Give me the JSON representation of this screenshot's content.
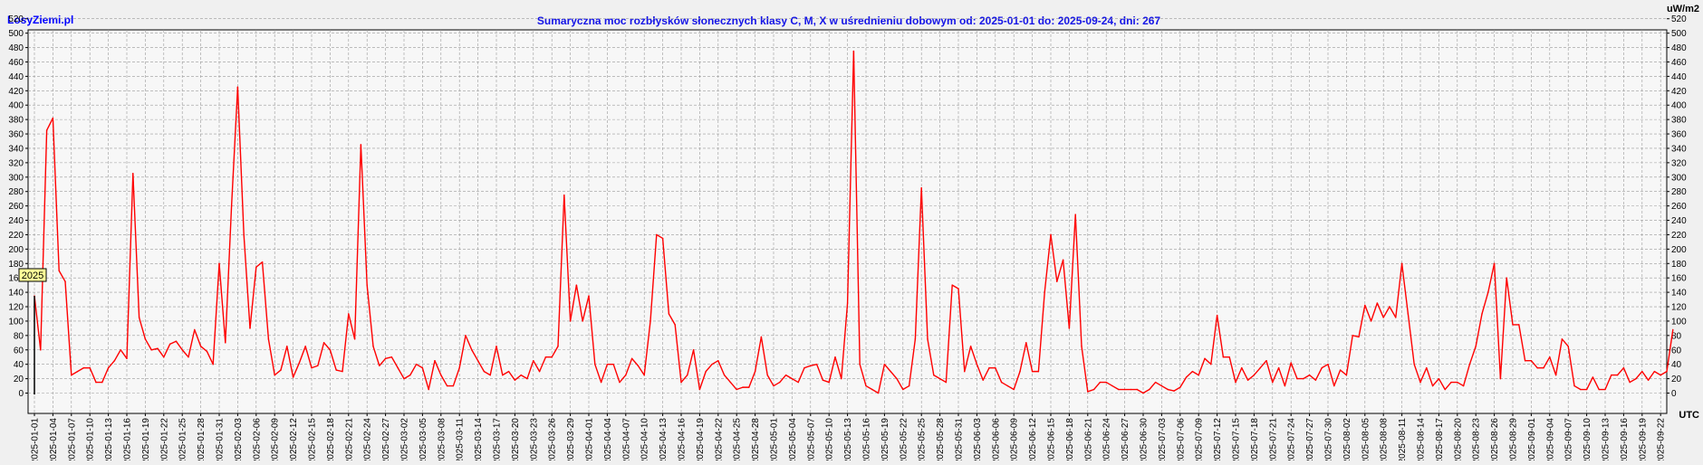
{
  "site_logo": "LosyZiemi.pl",
  "chart_data": {
    "type": "line",
    "title": "Sumaryczna moc rozbłysków słonecznych klasy C, M, X w uśrednieniu dobowym od: 2025-01-01 do: 2025-09-24, dni: 267",
    "y_unit_label": "uW/m2",
    "x_unit_label": "UTC",
    "year_badge": "2025",
    "ylim": [
      -10,
      520
    ],
    "y_tick_step": 20,
    "grid": true,
    "line_color": "#ff0000",
    "x_tick_labels": [
      "2025-01-01",
      "2025-01-04",
      "2025-01-07",
      "2025-01-10",
      "2025-01-13",
      "2025-01-16",
      "2025-01-19",
      "2025-01-22",
      "2025-01-25",
      "2025-01-28",
      "2025-01-31",
      "2025-02-03",
      "2025-02-06",
      "2025-02-09",
      "2025-02-12",
      "2025-02-15",
      "2025-02-18",
      "2025-02-21",
      "2025-02-24",
      "2025-02-27",
      "2025-03-02",
      "2025-03-05",
      "2025-03-08",
      "2025-03-11",
      "2025-03-14",
      "2025-03-17",
      "2025-03-20",
      "2025-03-23",
      "2025-03-26",
      "2025-03-29",
      "2025-04-01",
      "2025-04-04",
      "2025-04-07",
      "2025-04-10",
      "2025-04-13",
      "2025-04-16",
      "2025-04-19",
      "2025-04-22",
      "2025-04-25",
      "2025-04-28",
      "2025-05-01",
      "2025-05-04",
      "2025-05-07",
      "2025-05-10",
      "2025-05-13",
      "2025-05-16",
      "2025-05-19",
      "2025-05-22",
      "2025-05-25",
      "2025-05-28",
      "2025-05-31",
      "2025-06-03",
      "2025-06-06",
      "2025-06-09",
      "2025-06-12",
      "2025-06-15",
      "2025-06-18",
      "2025-06-21",
      "2025-06-24",
      "2025-06-27",
      "2025-06-30",
      "2025-07-03",
      "2025-07-06",
      "2025-07-09",
      "2025-07-12",
      "2025-07-15",
      "2025-07-18",
      "2025-07-21",
      "2025-07-24",
      "2025-07-27",
      "2025-07-30",
      "2025-08-02",
      "2025-08-05",
      "2025-08-08",
      "2025-08-11",
      "2025-08-14",
      "2025-08-17",
      "2025-08-20",
      "2025-08-23",
      "2025-08-26",
      "2025-08-29",
      "2025-09-01",
      "2025-09-04",
      "2025-09-07",
      "2025-09-10",
      "2025-09-13",
      "2025-09-16",
      "2025-09-19",
      "2025-09-22"
    ],
    "series": [
      {
        "values": [
          135,
          60,
          365,
          382,
          170,
          155,
          25,
          30,
          35,
          35,
          15,
          15,
          35,
          45,
          60,
          48,
          305,
          105,
          75,
          60,
          62,
          50,
          68,
          72,
          60,
          50,
          88,
          65,
          58,
          40,
          180,
          70,
          260,
          425,
          220,
          90,
          175,
          182,
          75,
          25,
          32,
          65,
          22,
          42,
          65,
          35,
          38,
          70,
          60,
          32,
          30,
          110,
          75,
          345,
          150,
          65,
          38,
          48,
          50,
          35,
          20,
          25,
          40,
          35,
          5,
          45,
          25,
          10,
          10,
          35,
          80,
          60,
          45,
          30,
          25,
          65,
          25,
          30,
          18,
          25,
          20,
          45,
          30,
          50,
          50,
          65,
          275,
          100,
          150,
          100,
          135,
          40,
          15,
          40,
          40,
          15,
          25,
          48,
          38,
          25,
          100,
          220,
          215,
          110,
          95,
          15,
          25,
          60,
          5,
          30,
          40,
          45,
          25,
          15,
          5,
          8,
          8,
          30,
          78,
          25,
          10,
          15,
          25,
          20,
          15,
          35,
          38,
          40,
          18,
          15,
          50,
          20,
          125,
          475,
          40,
          10,
          5,
          0,
          40,
          30,
          20,
          5,
          10,
          75,
          285,
          75,
          25,
          20,
          15,
          150,
          145,
          30,
          65,
          40,
          18,
          35,
          35,
          15,
          10,
          5,
          30,
          70,
          30,
          30,
          140,
          220,
          155,
          185,
          90,
          248,
          65,
          2,
          5,
          15,
          15,
          10,
          5,
          5,
          5,
          5,
          0,
          5,
          15,
          10,
          5,
          3,
          8,
          22,
          30,
          25,
          48,
          40,
          108,
          50,
          50,
          15,
          35,
          18,
          25,
          35,
          45,
          15,
          35,
          10,
          42,
          20,
          20,
          25,
          18,
          35,
          40,
          10,
          32,
          25,
          80,
          78,
          122,
          100,
          125,
          105,
          120,
          105,
          180,
          110,
          40,
          15,
          35,
          10,
          20,
          5,
          15,
          15,
          10,
          40,
          65,
          110,
          140,
          180,
          20,
          160,
          95,
          95,
          45,
          45,
          35,
          35,
          50,
          25,
          75,
          65,
          10,
          5,
          5,
          22,
          5,
          5,
          25,
          25,
          35,
          15,
          20,
          30,
          18,
          30,
          25,
          30,
          88
        ]
      }
    ]
  }
}
